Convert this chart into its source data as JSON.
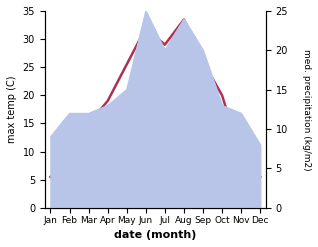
{
  "months": [
    "Jan",
    "Feb",
    "Mar",
    "Apr",
    "May",
    "Jun",
    "Jul",
    "Aug",
    "Sep",
    "Oct",
    "Nov",
    "Dec"
  ],
  "temperature": [
    5.5,
    9.0,
    15.0,
    19.0,
    25.5,
    32.0,
    29.0,
    33.5,
    26.0,
    20.0,
    9.0,
    5.5
  ],
  "precipitation": [
    9,
    12,
    12,
    13,
    15,
    25,
    20,
    24,
    20,
    13,
    12,
    8
  ],
  "temp_color": "#b03050",
  "precip_fill_color": "#b8c4e8",
  "precip_edge_color": "#b8c4e8",
  "temp_ylim": [
    0,
    35
  ],
  "precip_ylim": [
    0,
    25
  ],
  "temp_yticks": [
    0,
    5,
    10,
    15,
    20,
    25,
    30,
    35
  ],
  "precip_yticks": [
    0,
    5,
    10,
    15,
    20,
    25
  ],
  "ylabel_left": "max temp (C)",
  "ylabel_right": "med. precipitation (kg/m2)",
  "xlabel": "date (month)",
  "fig_bg": "#ffffff",
  "axes_bg": "#ffffff"
}
